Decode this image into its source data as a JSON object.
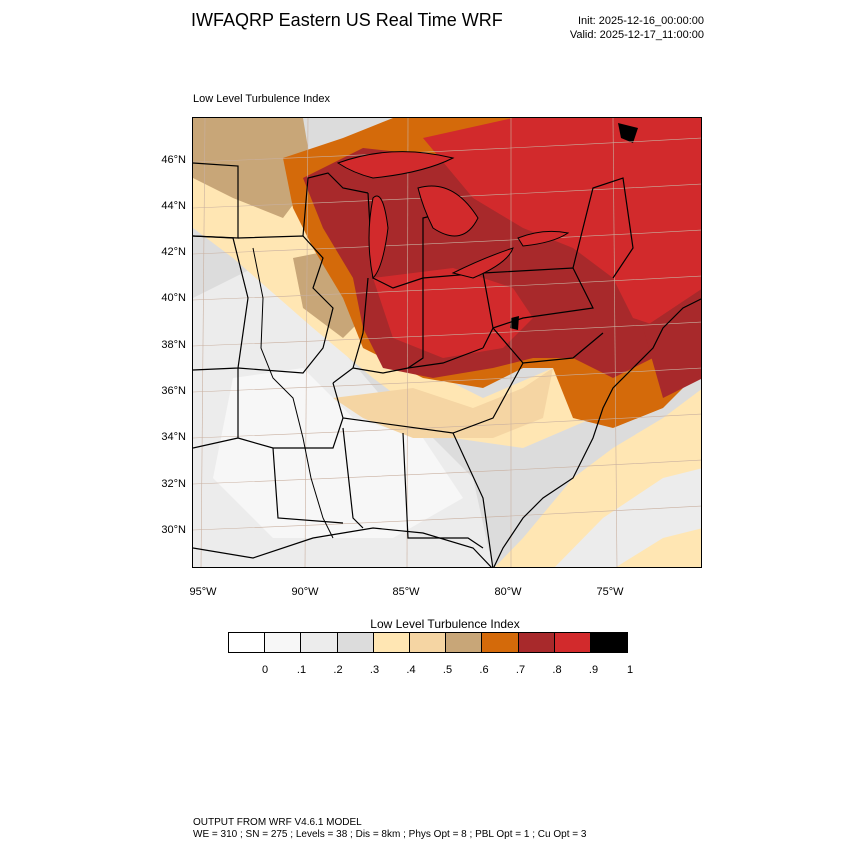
{
  "header": {
    "title": "IWFAQRP Eastern US Real Time WRF",
    "init": "Init: 2025-12-16_00:00:00",
    "valid": "Valid: 2025-12-17_11:00:00"
  },
  "map": {
    "subtitle": "Low Level Turbulence Index",
    "lat_labels": [
      "46°N",
      "44°N",
      "42°N",
      "40°N",
      "38°N",
      "36°N",
      "34°N",
      "32°N",
      "30°N"
    ],
    "lon_labels": [
      "95°W",
      "90°W",
      "85°W",
      "80°W",
      "75°W"
    ]
  },
  "colorbar": {
    "title": "Low Level Turbulence Index",
    "colors": [
      "#ffffff",
      "#f7f7f7",
      "#ececec",
      "#dcdcdc",
      "#ffe6b3",
      "#f5d5a3",
      "#c8a678",
      "#d46a0a",
      "#a8292b",
      "#d22a2c",
      "#000000"
    ],
    "tick_labels": [
      "0",
      ".1",
      ".2",
      ".3",
      ".4",
      ".5",
      ".6",
      ".7",
      ".8",
      ".9",
      "1"
    ]
  },
  "footer": {
    "line1": "OUTPUT FROM WRF V4.6.1 MODEL",
    "line2": "WE = 310 ; SN = 275 ; Levels = 38 ; Dis = 8km ; Phys Opt = 8 ; PBL Opt = 1 ; Cu Opt = 3"
  }
}
